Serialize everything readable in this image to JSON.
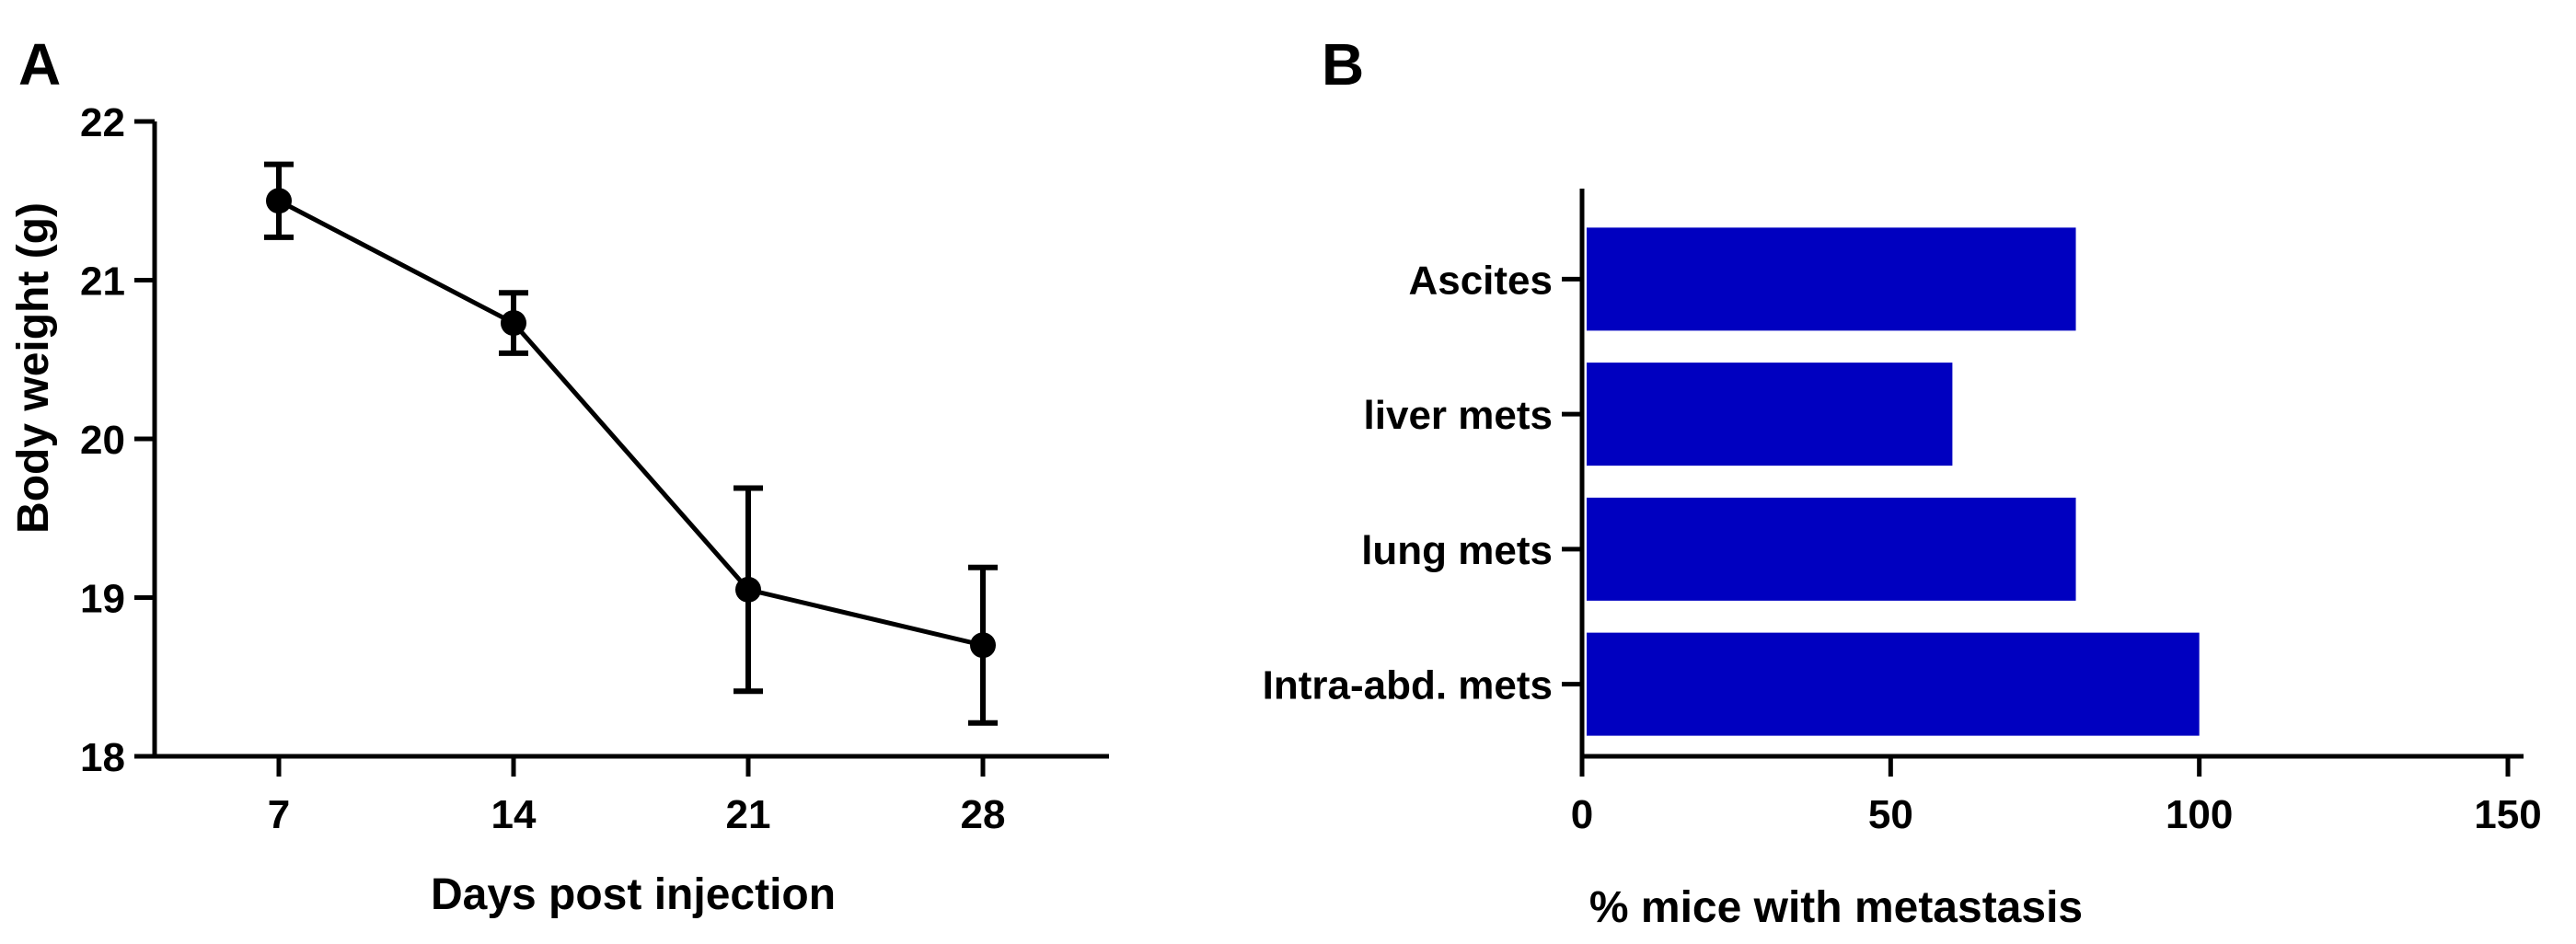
{
  "chart_data": [
    {
      "panel": "A",
      "type": "line",
      "title": "",
      "xlabel": "Days post injection",
      "ylabel": "Body weight (g)",
      "x": [
        7,
        14,
        21,
        28
      ],
      "series": [
        {
          "values": [
            21.5,
            20.73,
            19.05,
            18.7
          ],
          "error": [
            0.23,
            0.19,
            0.64,
            0.49
          ]
        }
      ],
      "xticks": [
        7,
        14,
        21,
        28
      ],
      "yticks": [
        18,
        19,
        20,
        21,
        22
      ],
      "ylim": [
        18,
        22
      ],
      "grid": false,
      "color": "#000000"
    },
    {
      "panel": "B",
      "type": "bar",
      "orientation": "horizontal",
      "title": "",
      "xlabel": "%  mice with metastasis",
      "ylabel": "",
      "categories": [
        "Ascites",
        "liver mets",
        "lung mets",
        "Intra-abd. mets"
      ],
      "values": [
        80,
        60,
        80,
        100
      ],
      "xticks": [
        0,
        50,
        100,
        150
      ],
      "xlim": [
        0,
        150
      ],
      "grid": false,
      "color": "#0000c0"
    }
  ]
}
